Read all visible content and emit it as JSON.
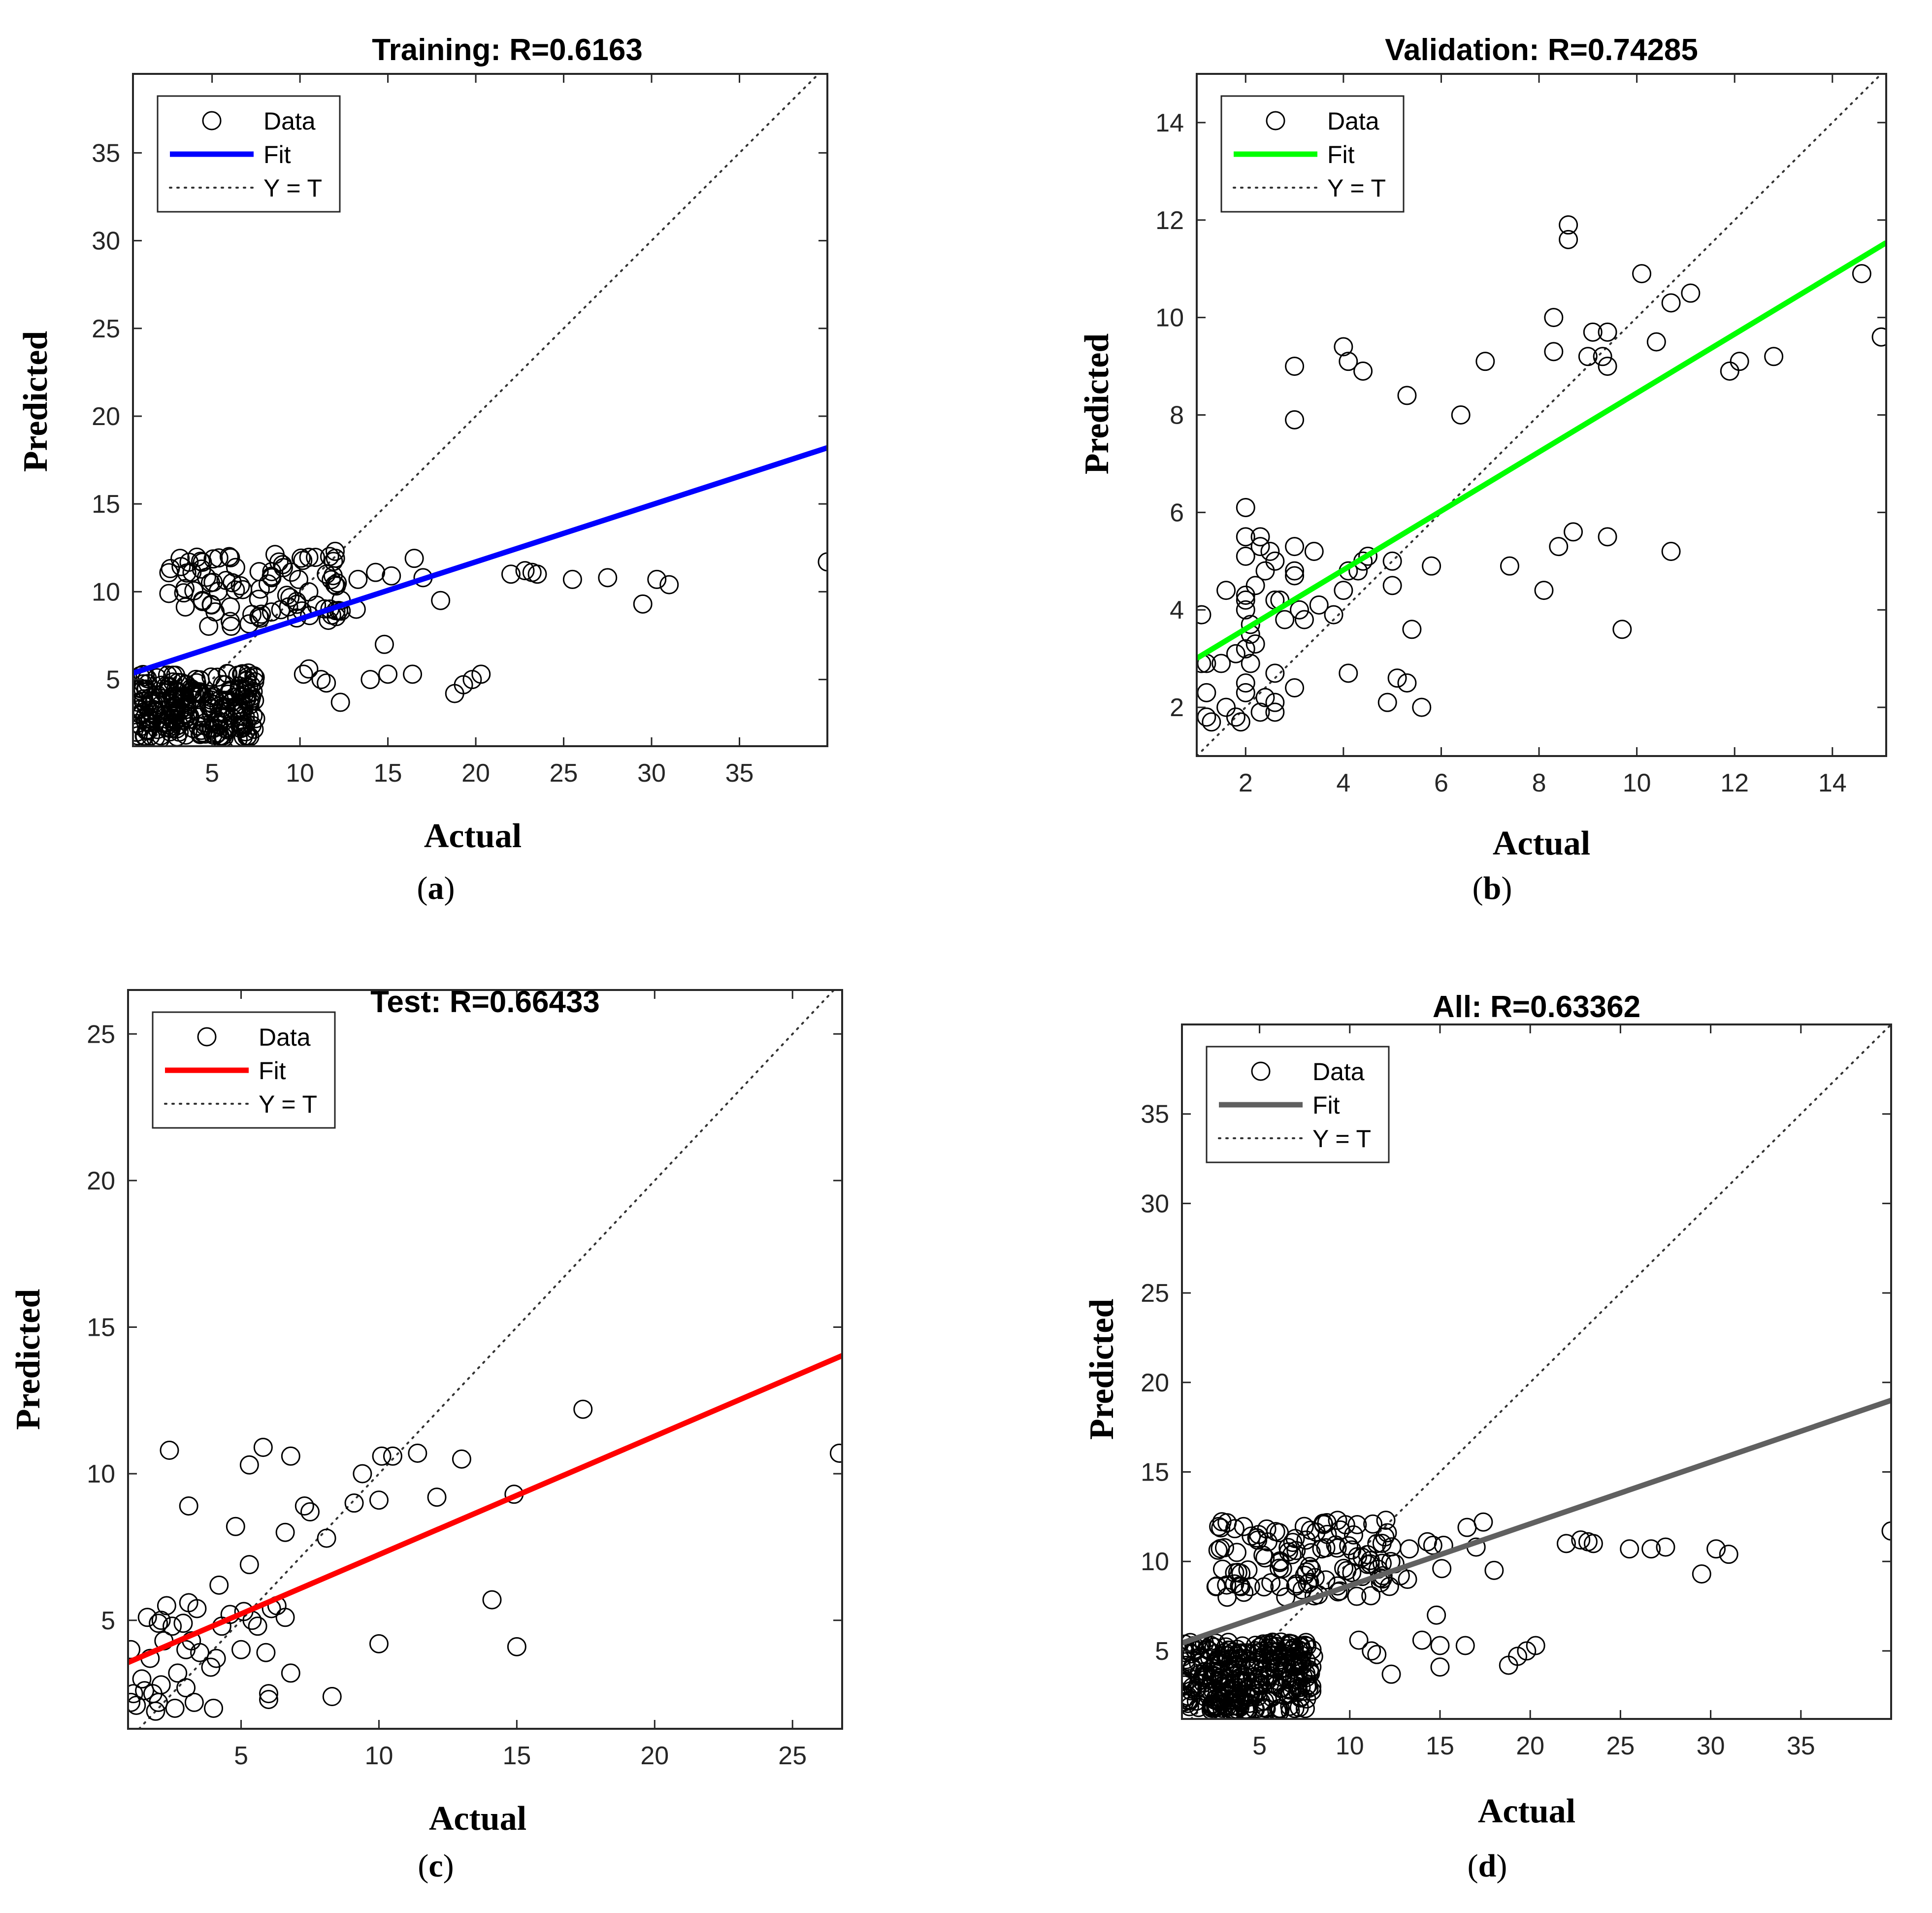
{
  "legend": {
    "data": "Data",
    "fit": "Fit",
    "ident": "Y = T"
  },
  "chart_data": [
    {
      "type": "scatter",
      "title": "Training: R=0.6163",
      "xlabel": "Actual",
      "ylabel": "Predicted",
      "caption_letter": "a",
      "xlim": [
        0.5,
        40
      ],
      "ylim": [
        1.2,
        39.5
      ],
      "xticks": [
        5,
        10,
        15,
        20,
        25,
        30,
        35
      ],
      "yticks": [
        5,
        10,
        15,
        20,
        25,
        30,
        35
      ],
      "fit": {
        "color": "#0000ff",
        "slope": 0.325,
        "intercept": 5.2
      },
      "dense_clusters": [
        {
          "x": [
            0.7,
            7.5
          ],
          "y": [
            1.6,
            5.4
          ],
          "n": 260
        },
        {
          "x": [
            2.5,
            12.5
          ],
          "y": [
            8.0,
            12.3
          ],
          "n": 90
        }
      ],
      "points": [
        [
          40,
          11.7
        ],
        [
          31,
          10.4
        ],
        [
          30.3,
          10.7
        ],
        [
          29.5,
          9.3
        ],
        [
          27.5,
          10.8
        ],
        [
          25.5,
          10.7
        ],
        [
          23.5,
          11
        ],
        [
          23.2,
          11.1
        ],
        [
          22.8,
          11.2
        ],
        [
          22,
          11
        ],
        [
          20.3,
          5.3
        ],
        [
          19.8,
          5
        ],
        [
          19.3,
          4.7
        ],
        [
          18.8,
          4.2
        ],
        [
          18,
          9.5
        ],
        [
          17,
          10.8
        ],
        [
          16.5,
          11.9
        ],
        [
          16.4,
          5.3
        ],
        [
          15.2,
          10.9
        ],
        [
          15,
          5.3
        ],
        [
          14.8,
          7
        ],
        [
          14.3,
          11.1
        ],
        [
          14,
          5
        ],
        [
          13.2,
          9
        ],
        [
          12.3,
          3.7
        ],
        [
          11.5,
          4.8
        ],
        [
          11.2,
          5
        ],
        [
          10.5,
          5.6
        ],
        [
          10.2,
          5.3
        ],
        [
          13.3,
          10.7
        ],
        [
          12,
          12.3
        ],
        [
          11.5,
          11
        ]
      ]
    },
    {
      "type": "scatter",
      "title": "Validation: R=0.74285",
      "xlabel": "Actual",
      "ylabel": "Predicted",
      "caption_letter": "b",
      "xlim": [
        1,
        15.1
      ],
      "ylim": [
        1,
        15
      ],
      "xticks": [
        2,
        4,
        6,
        8,
        10,
        12,
        14
      ],
      "yticks": [
        2,
        4,
        6,
        8,
        10,
        12,
        14
      ],
      "fit": {
        "color": "#00ff00",
        "slope": 0.605,
        "intercept": 2.4
      },
      "dense_clusters": [],
      "points": [
        [
          1.1,
          3.9
        ],
        [
          1.1,
          2.9
        ],
        [
          1.2,
          1.8
        ],
        [
          1.2,
          2.9
        ],
        [
          1.3,
          1.7
        ],
        [
          1.2,
          2.3
        ],
        [
          1.5,
          2.9
        ],
        [
          1.6,
          4.4
        ],
        [
          1.6,
          2
        ],
        [
          1.8,
          1.8
        ],
        [
          1.8,
          3.1
        ],
        [
          1.9,
          1.7
        ],
        [
          2,
          2.3
        ],
        [
          2,
          2.5
        ],
        [
          2,
          3.2
        ],
        [
          2,
          4
        ],
        [
          2,
          4.2
        ],
        [
          2,
          4.3
        ],
        [
          2,
          5.1
        ],
        [
          2,
          5.5
        ],
        [
          2,
          6.1
        ],
        [
          2.1,
          3.5
        ],
        [
          2.1,
          3.7
        ],
        [
          2.1,
          2.9
        ],
        [
          2.2,
          3.3
        ],
        [
          2.2,
          4.5
        ],
        [
          2.3,
          5.3
        ],
        [
          2.3,
          5.5
        ],
        [
          2.3,
          1.9
        ],
        [
          2.4,
          4.8
        ],
        [
          2.4,
          2.2
        ],
        [
          2.5,
          5.2
        ],
        [
          2.6,
          2.1
        ],
        [
          2.6,
          1.9
        ],
        [
          2.6,
          2.7
        ],
        [
          2.6,
          5
        ],
        [
          2.6,
          4.2
        ],
        [
          2.7,
          4.2
        ],
        [
          2.8,
          3.8
        ],
        [
          3,
          4.8
        ],
        [
          3,
          5.3
        ],
        [
          3,
          4.7
        ],
        [
          3,
          2.4
        ],
        [
          3,
          7.9
        ],
        [
          3,
          9
        ],
        [
          3.1,
          4
        ],
        [
          3.2,
          3.8
        ],
        [
          3.4,
          5.2
        ],
        [
          3.5,
          4.1
        ],
        [
          3.8,
          3.9
        ],
        [
          4,
          4.4
        ],
        [
          4,
          9.4
        ],
        [
          4.1,
          9.1
        ],
        [
          4.1,
          2.7
        ],
        [
          4.1,
          4.8
        ],
        [
          4.4,
          8.9
        ],
        [
          4.3,
          4.8
        ],
        [
          4.4,
          5
        ],
        [
          4.5,
          5.1
        ],
        [
          4.9,
          2.1
        ],
        [
          5,
          5
        ],
        [
          5,
          4.5
        ],
        [
          5.1,
          2.6
        ],
        [
          5.3,
          2.5
        ],
        [
          5.3,
          8.4
        ],
        [
          5.4,
          3.6
        ],
        [
          5.6,
          2
        ],
        [
          5.8,
          4.9
        ],
        [
          6.4,
          8
        ],
        [
          6.9,
          9.1
        ],
        [
          7.4,
          4.9
        ],
        [
          8.1,
          4.4
        ],
        [
          8.3,
          10
        ],
        [
          8.3,
          9.3
        ],
        [
          8.4,
          5.3
        ],
        [
          8.6,
          11.9
        ],
        [
          8.6,
          11.6
        ],
        [
          8.7,
          5.6
        ],
        [
          9,
          9.2
        ],
        [
          9.1,
          9.7
        ],
        [
          9.3,
          9.2
        ],
        [
          9.4,
          9
        ],
        [
          9.4,
          9.7
        ],
        [
          9.4,
          5.5
        ],
        [
          9.7,
          3.6
        ],
        [
          10.1,
          10.9
        ],
        [
          10.4,
          9.5
        ],
        [
          10.7,
          5.2
        ],
        [
          10.7,
          10.3
        ],
        [
          11.1,
          10.5
        ],
        [
          11.9,
          8.9
        ],
        [
          12.1,
          9.1
        ],
        [
          12.8,
          9.2
        ],
        [
          14.6,
          10.9
        ],
        [
          15,
          9.6
        ]
      ]
    },
    {
      "type": "scatter",
      "title": "Test: R=0.66433",
      "xlabel": "Actual",
      "ylabel": "Predicted",
      "caption_letter": "c",
      "xlim": [
        0.9,
        26.8
      ],
      "ylim": [
        1.3,
        26.5
      ],
      "xticks": [
        5,
        10,
        15,
        20,
        25
      ],
      "yticks": [
        5,
        10,
        15,
        20,
        25
      ],
      "fit": {
        "color": "#ff0000",
        "slope": 0.404,
        "intercept": 3.2
      },
      "dense_clusters": [],
      "points": [
        [
          1,
          4
        ],
        [
          1,
          2.2
        ],
        [
          1.1,
          2.5
        ],
        [
          1.2,
          2.1
        ],
        [
          1.4,
          3
        ],
        [
          1.5,
          2.6
        ],
        [
          1.6,
          5.1
        ],
        [
          1.7,
          3.7
        ],
        [
          1.8,
          2.5
        ],
        [
          1.9,
          1.9
        ],
        [
          2,
          4.9
        ],
        [
          2,
          2.2
        ],
        [
          2.1,
          5
        ],
        [
          2.1,
          2.8
        ],
        [
          2.2,
          4.3
        ],
        [
          2.3,
          5.5
        ],
        [
          2.4,
          10.8
        ],
        [
          2.5,
          4.8
        ],
        [
          2.6,
          2
        ],
        [
          2.7,
          3.2
        ],
        [
          2.9,
          4.9
        ],
        [
          3,
          4
        ],
        [
          3,
          2.7
        ],
        [
          3.1,
          5.6
        ],
        [
          3.1,
          8.9
        ],
        [
          3.2,
          4.3
        ],
        [
          3.3,
          2.2
        ],
        [
          3.4,
          5.4
        ],
        [
          3.5,
          3.9
        ],
        [
          3.9,
          3.4
        ],
        [
          4,
          2
        ],
        [
          4.1,
          3.7
        ],
        [
          4.2,
          6.2
        ],
        [
          4.3,
          4.8
        ],
        [
          4.6,
          5.2
        ],
        [
          4.8,
          8.2
        ],
        [
          5,
          4
        ],
        [
          5.1,
          5.3
        ],
        [
          5.3,
          6.9
        ],
        [
          5.3,
          10.3
        ],
        [
          5.4,
          5
        ],
        [
          5.6,
          4.8
        ],
        [
          5.8,
          10.9
        ],
        [
          5.9,
          3.9
        ],
        [
          6,
          2.5
        ],
        [
          6,
          2.3
        ],
        [
          6.1,
          5.4
        ],
        [
          6.3,
          5.5
        ],
        [
          6.6,
          8
        ],
        [
          6.6,
          5.1
        ],
        [
          6.8,
          10.6
        ],
        [
          6.8,
          3.2
        ],
        [
          7.3,
          8.9
        ],
        [
          7.5,
          8.7
        ],
        [
          8.1,
          7.8
        ],
        [
          8.3,
          2.4
        ],
        [
          9.1,
          9
        ],
        [
          9.4,
          10
        ],
        [
          10,
          9.1
        ],
        [
          10.1,
          10.6
        ],
        [
          10,
          4.2
        ],
        [
          10.5,
          10.6
        ],
        [
          11.4,
          10.7
        ],
        [
          12.1,
          9.2
        ],
        [
          13,
          10.5
        ],
        [
          14.1,
          5.7
        ],
        [
          14.9,
          9.3
        ],
        [
          15,
          4.1
        ],
        [
          17.4,
          12.2
        ],
        [
          26.7,
          10.7
        ]
      ]
    },
    {
      "type": "scatter",
      "title": "All: R=0.63362",
      "xlabel": "Actual",
      "ylabel": "Predicted",
      "caption_letter": "d",
      "xlim": [
        0.7,
        40
      ],
      "ylim": [
        1.2,
        40
      ],
      "xticks": [
        5,
        10,
        15,
        20,
        25,
        30,
        35
      ],
      "yticks": [
        5,
        10,
        15,
        20,
        25,
        30,
        35
      ],
      "fit": {
        "color": "#606060",
        "slope": 0.345,
        "intercept": 5.2
      },
      "dense_clusters": [
        {
          "x": [
            0.7,
            8.0
          ],
          "y": [
            1.6,
            5.5
          ],
          "n": 320
        },
        {
          "x": [
            2.5,
            12.5
          ],
          "y": [
            8.0,
            12.3
          ],
          "n": 110
        }
      ],
      "points": [
        [
          40,
          11.7
        ],
        [
          31,
          10.4
        ],
        [
          30.3,
          10.7
        ],
        [
          29.5,
          9.3
        ],
        [
          27.5,
          10.8
        ],
        [
          26.7,
          10.7
        ],
        [
          25.5,
          10.7
        ],
        [
          23.5,
          11
        ],
        [
          23.2,
          11.1
        ],
        [
          22.8,
          11.2
        ],
        [
          22,
          11
        ],
        [
          20.3,
          5.3
        ],
        [
          19.8,
          5
        ],
        [
          19.3,
          4.7
        ],
        [
          18.8,
          4.2
        ],
        [
          18,
          9.5
        ],
        [
          17.4,
          12.2
        ],
        [
          17,
          10.8
        ],
        [
          16.5,
          11.9
        ],
        [
          16.4,
          5.3
        ],
        [
          15.2,
          10.9
        ],
        [
          15,
          5.3
        ],
        [
          15,
          4.1
        ],
        [
          14.8,
          7
        ],
        [
          14.3,
          11.1
        ],
        [
          14,
          5.6
        ],
        [
          13.2,
          9
        ],
        [
          12.3,
          3.7
        ],
        [
          11.5,
          4.8
        ],
        [
          11.2,
          5
        ],
        [
          10.5,
          5.6
        ],
        [
          13.3,
          10.7
        ],
        [
          12,
          12.3
        ],
        [
          11.5,
          11
        ],
        [
          12.8,
          9.2
        ],
        [
          14.6,
          10.9
        ],
        [
          15.1,
          9.6
        ]
      ]
    }
  ]
}
